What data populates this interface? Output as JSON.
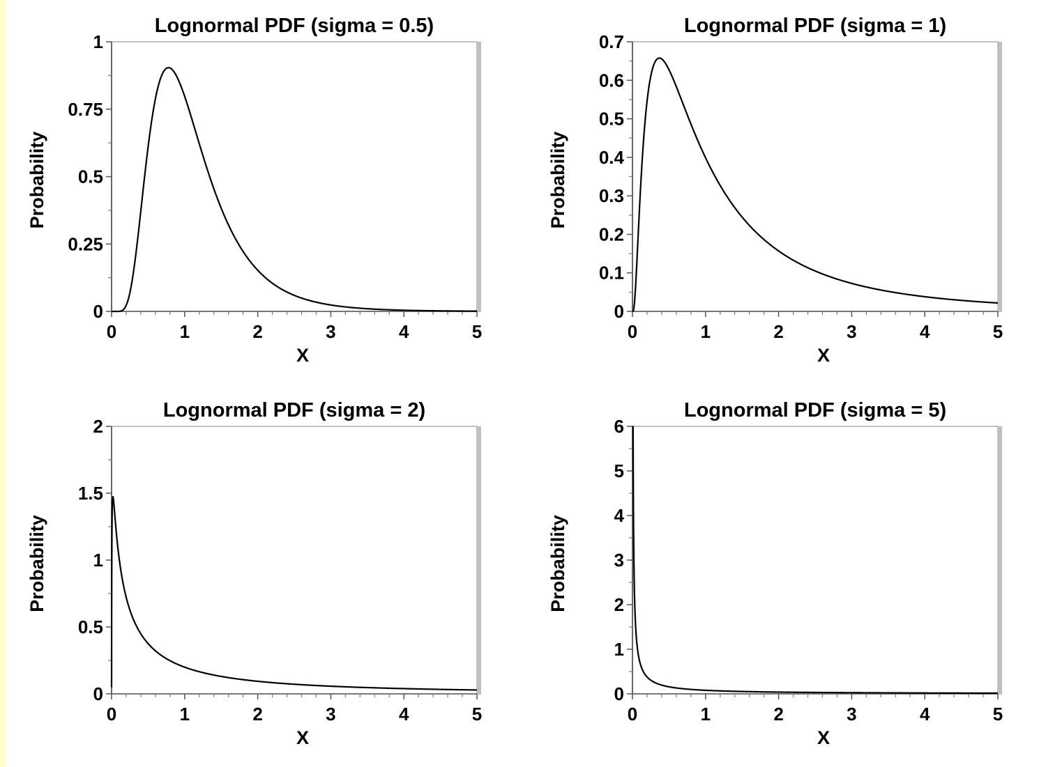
{
  "chart_data": [
    {
      "type": "line",
      "title": "Lognormal PDF (sigma = 0.5)",
      "xlabel": "X",
      "ylabel": "Probability",
      "sigma": 0.5,
      "xlim": [
        0,
        5
      ],
      "ylim": [
        0,
        1
      ],
      "xticks": [
        "0",
        "1",
        "2",
        "3",
        "4",
        "5"
      ],
      "yticks": [
        "0",
        "0.25",
        "0.5",
        "0.75",
        "1"
      ],
      "x": [
        0.05,
        0.1,
        0.2,
        0.3,
        0.4,
        0.5,
        0.6,
        0.7,
        0.8,
        0.9,
        1.0,
        1.2,
        1.4,
        1.6,
        1.8,
        2.0,
        2.5,
        3.0,
        3.5,
        4.0,
        4.5,
        5.0
      ],
      "y": [
        0.0,
        0.0,
        0.02,
        0.18,
        0.46,
        0.69,
        0.83,
        0.89,
        0.89,
        0.85,
        0.8,
        0.66,
        0.52,
        0.4,
        0.3,
        0.22,
        0.1,
        0.047,
        0.022,
        0.011,
        0.005,
        0.003
      ],
      "grid": false
    },
    {
      "type": "line",
      "title": "Lognormal PDF (sigma = 1)",
      "xlabel": "X",
      "ylabel": "Probability",
      "sigma": 1,
      "xlim": [
        0,
        5
      ],
      "ylim": [
        0,
        0.7
      ],
      "xticks": [
        "0",
        "1",
        "2",
        "3",
        "4",
        "5"
      ],
      "yticks": [
        "0",
        "0.1",
        "0.2",
        "0.3",
        "0.4",
        "0.5",
        "0.6",
        "0.7"
      ],
      "x": [
        0.02,
        0.05,
        0.1,
        0.2,
        0.3,
        0.37,
        0.5,
        0.7,
        1.0,
        1.5,
        2.0,
        2.5,
        3.0,
        3.5,
        4.0,
        4.5,
        5.0
      ],
      "y": [
        0.0,
        0.04,
        0.28,
        0.55,
        0.64,
        0.66,
        0.63,
        0.53,
        0.4,
        0.24,
        0.16,
        0.11,
        0.073,
        0.053,
        0.038,
        0.029,
        0.022
      ],
      "grid": false
    },
    {
      "type": "line",
      "title": "Lognormal PDF (sigma = 2)",
      "xlabel": "X",
      "ylabel": "Probability",
      "sigma": 2,
      "xlim": [
        0,
        5
      ],
      "ylim": [
        0,
        2
      ],
      "xticks": [
        "0",
        "1",
        "2",
        "3",
        "4",
        "5"
      ],
      "yticks": [
        "0",
        "0.5",
        "1",
        "1.5",
        "2"
      ],
      "x": [
        0.01,
        0.03,
        0.05,
        0.1,
        0.2,
        0.3,
        0.5,
        0.7,
        1.0,
        1.5,
        2.0,
        2.5,
        3.0,
        3.5,
        4.0,
        4.5,
        5.0
      ],
      "y": [
        1.5,
        1.35,
        1.1,
        0.88,
        0.6,
        0.48,
        0.35,
        0.27,
        0.2,
        0.14,
        0.11,
        0.085,
        0.07,
        0.058,
        0.05,
        0.043,
        0.036
      ],
      "grid": false
    },
    {
      "type": "line",
      "title": "Lognormal PDF (sigma = 5)",
      "xlabel": "X",
      "ylabel": "Probability",
      "sigma": 5,
      "xlim": [
        0,
        5
      ],
      "ylim": [
        0,
        6
      ],
      "xticks": [
        "0",
        "1",
        "2",
        "3",
        "4",
        "5"
      ],
      "yticks": [
        "0",
        "1",
        "2",
        "3",
        "4",
        "5",
        "6"
      ],
      "x": [
        0.005,
        0.01,
        0.02,
        0.03,
        0.05,
        0.07,
        0.1,
        0.15,
        0.2,
        0.3,
        0.5,
        0.7,
        1.0,
        1.5,
        2.0,
        3.0,
        4.0,
        5.0
      ],
      "y": [
        5.2,
        3.5,
        2.1,
        1.55,
        1.0,
        0.74,
        0.53,
        0.37,
        0.29,
        0.2,
        0.13,
        0.095,
        0.07,
        0.048,
        0.036,
        0.024,
        0.018,
        0.015
      ],
      "grid": false
    }
  ]
}
